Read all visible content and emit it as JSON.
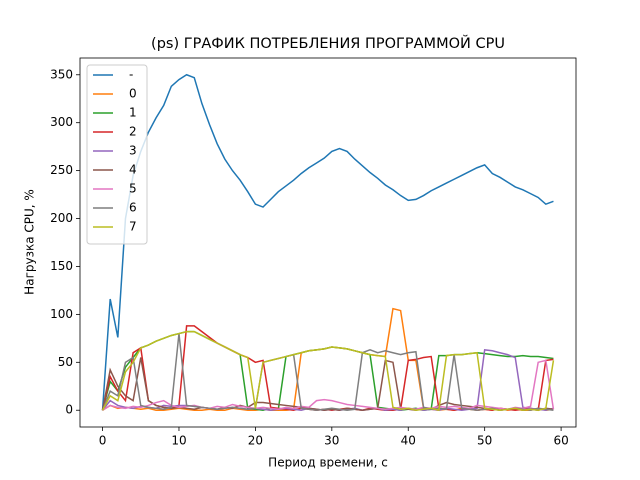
{
  "chart_data": {
    "type": "line",
    "title": "(ps) ГРАФИК ПОТРЕБЛЕНИЯ ПРОГРАММОЙ CPU",
    "x_label": "Период времени, с",
    "y_label": "Нагрузка CPU, %",
    "x": [
      0,
      1,
      2,
      3,
      4,
      5,
      6,
      7,
      8,
      9,
      10,
      11,
      12,
      13,
      14,
      15,
      16,
      17,
      18,
      19,
      20,
      21,
      22,
      23,
      24,
      25,
      26,
      27,
      28,
      29,
      30,
      31,
      32,
      33,
      34,
      35,
      36,
      37,
      38,
      39,
      40,
      41,
      42,
      43,
      44,
      45,
      46,
      47,
      48,
      49,
      50,
      51,
      52,
      53,
      54,
      55,
      56,
      57,
      58,
      59
    ],
    "xlim": [
      -2.95,
      61.95
    ],
    "xticks": [
      0,
      10,
      20,
      30,
      40,
      50,
      60
    ],
    "ylim": [
      -17.5,
      367.5
    ],
    "yticks": [
      0,
      50,
      100,
      150,
      200,
      250,
      300,
      350
    ],
    "legend": "upper left",
    "series": [
      {
        "name": "-",
        "color": "#1f77b4",
        "values": [
          0,
          116,
          76,
          200,
          245,
          270,
          290,
          305,
          318,
          338,
          345,
          350,
          347,
          320,
          298,
          278,
          262,
          250,
          240,
          228,
          215,
          212,
          220,
          228,
          234,
          240,
          247,
          253,
          258,
          263,
          270,
          273,
          270,
          262,
          255,
          248,
          242,
          235,
          230,
          224,
          219,
          220,
          224,
          229,
          233,
          237,
          241,
          245,
          249,
          253,
          256,
          247,
          243,
          238,
          233,
          230,
          226,
          222,
          215,
          218
        ]
      },
      {
        "name": "0",
        "color": "#ff7f0e",
        "values": [
          0,
          5,
          2,
          3,
          2,
          1,
          2,
          0,
          0,
          1,
          2,
          1,
          0,
          0,
          1,
          0,
          0,
          2,
          1,
          0,
          0,
          1,
          0,
          0,
          0,
          1,
          60,
          62,
          63,
          64,
          66,
          65,
          64,
          62,
          60,
          58,
          57,
          56,
          106,
          104,
          52,
          52,
          2,
          1,
          0,
          1,
          0,
          2,
          1,
          0,
          1,
          0,
          2,
          0,
          1,
          0,
          0,
          2,
          0,
          1
        ]
      },
      {
        "name": "1",
        "color": "#2ca02c",
        "values": [
          0,
          30,
          20,
          45,
          55,
          65,
          68,
          72,
          75,
          78,
          80,
          82,
          82,
          78,
          74,
          70,
          66,
          62,
          58,
          2,
          1,
          0,
          2,
          1,
          56,
          58,
          60,
          62,
          63,
          64,
          66,
          65,
          64,
          62,
          60,
          58,
          3,
          2,
          1,
          0,
          1,
          2,
          0,
          1,
          57,
          57,
          58,
          58,
          59,
          60,
          59,
          58,
          57,
          56,
          56,
          57,
          56,
          56,
          55,
          54
        ]
      },
      {
        "name": "2",
        "color": "#d62728",
        "values": [
          0,
          35,
          20,
          10,
          60,
          65,
          10,
          5,
          3,
          2,
          5,
          88,
          88,
          82,
          76,
          70,
          66,
          62,
          58,
          55,
          50,
          52,
          3,
          2,
          1,
          0,
          2,
          1,
          0,
          1,
          0,
          1,
          2,
          1,
          0,
          2,
          1,
          0,
          0,
          1,
          52,
          53,
          55,
          56,
          2,
          1,
          0,
          1,
          2,
          0,
          1,
          0,
          2,
          1,
          0,
          1,
          2,
          0,
          52,
          53
        ]
      },
      {
        "name": "3",
        "color": "#9467bd",
        "values": [
          0,
          10,
          5,
          3,
          2,
          4,
          3,
          2,
          5,
          4,
          5,
          5,
          4,
          3,
          2,
          1,
          2,
          3,
          2,
          1,
          2,
          1,
          0,
          1,
          2,
          1,
          0,
          2,
          1,
          0,
          1,
          0,
          1,
          2,
          0,
          1,
          2,
          0,
          1,
          0,
          2,
          1,
          0,
          1,
          0,
          2,
          1,
          0,
          1,
          2,
          63,
          62,
          60,
          58,
          55,
          3,
          2,
          1,
          0,
          2
        ]
      },
      {
        "name": "4",
        "color": "#8c564b",
        "values": [
          0,
          42,
          25,
          15,
          10,
          55,
          10,
          5,
          3,
          2,
          3,
          2,
          1,
          3,
          2,
          1,
          3,
          2,
          5,
          3,
          8,
          8,
          7,
          6,
          5,
          4,
          3,
          2,
          1,
          0,
          1,
          0,
          2,
          1,
          0,
          1,
          2,
          52,
          50,
          2,
          1,
          0,
          2,
          1,
          5,
          8,
          6,
          5,
          4,
          3,
          2,
          1,
          0,
          1,
          2,
          0,
          1,
          0,
          2,
          1
        ]
      },
      {
        "name": "5",
        "color": "#e377c2",
        "values": [
          0,
          5,
          3,
          2,
          4,
          3,
          5,
          8,
          10,
          5,
          3,
          4,
          5,
          3,
          2,
          4,
          3,
          6,
          4,
          3,
          2,
          3,
          2,
          1,
          3,
          2,
          4,
          3,
          10,
          11,
          10,
          8,
          6,
          5,
          4,
          3,
          2,
          1,
          2,
          3,
          2,
          1,
          3,
          2,
          4,
          3,
          4,
          3,
          2,
          5,
          4,
          3,
          2,
          1,
          3,
          2,
          4,
          50,
          52,
          1
        ]
      },
      {
        "name": "6",
        "color": "#7f7f7f",
        "values": [
          0,
          20,
          15,
          50,
          55,
          5,
          3,
          2,
          1,
          3,
          80,
          5,
          4,
          3,
          2,
          1,
          2,
          3,
          2,
          1,
          2,
          50,
          52,
          54,
          56,
          58,
          2,
          1,
          0,
          1,
          2,
          1,
          0,
          1,
          60,
          63,
          60,
          62,
          60,
          58,
          60,
          61,
          3,
          1,
          2,
          1,
          58,
          2,
          1,
          0,
          1,
          2,
          0,
          1,
          2,
          1,
          0,
          2,
          1,
          0
        ]
      },
      {
        "name": "7",
        "color": "#bcbd22",
        "values": [
          0,
          15,
          10,
          40,
          50,
          65,
          68,
          72,
          75,
          78,
          80,
          82,
          82,
          78,
          74,
          70,
          66,
          62,
          58,
          55,
          2,
          50,
          52,
          54,
          56,
          58,
          60,
          62,
          63,
          64,
          66,
          65,
          64,
          62,
          60,
          58,
          57,
          56,
          3,
          1,
          2,
          0,
          1,
          2,
          0,
          57,
          58,
          58,
          59,
          60,
          2,
          1,
          0,
          1,
          2,
          0,
          1,
          0,
          2,
          52
        ]
      }
    ]
  }
}
